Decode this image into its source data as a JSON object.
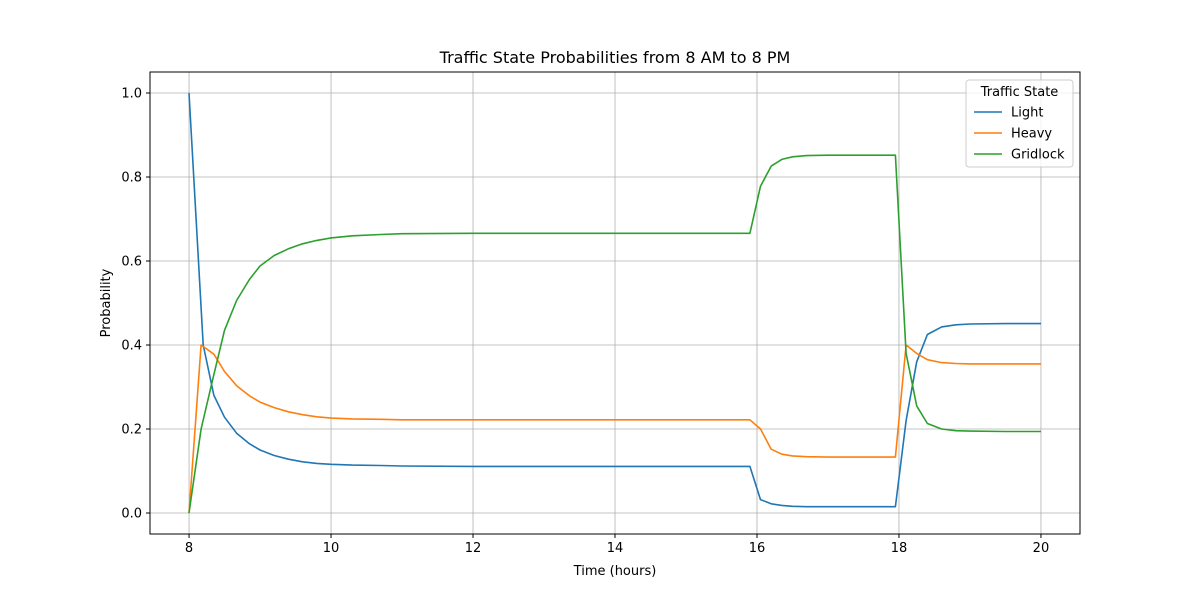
{
  "chart_data": {
    "type": "line",
    "title": "Traffic State Probabilities from 8 AM to 8 PM",
    "xlabel": "Time (hours)",
    "ylabel": "Probability",
    "xlim": [
      7.45,
      20.55
    ],
    "ylim": [
      -0.05,
      1.05
    ],
    "xticks": [
      8,
      10,
      12,
      14,
      16,
      18,
      20
    ],
    "yticks": [
      0.0,
      0.2,
      0.4,
      0.6,
      0.8,
      1.0
    ],
    "xtick_labels": [
      "8",
      "10",
      "12",
      "14",
      "16",
      "18",
      "20"
    ],
    "ytick_labels": [
      "0.0",
      "0.2",
      "0.4",
      "0.6",
      "0.8",
      "1.0"
    ],
    "grid": true,
    "legend": {
      "title": "Traffic State",
      "position": "top-right"
    },
    "series": [
      {
        "name": "Light",
        "color": "#1f77b4",
        "x": [
          8.0,
          8.2,
          8.35,
          8.5,
          8.67,
          8.85,
          9.0,
          9.2,
          9.4,
          9.6,
          9.8,
          10.0,
          10.3,
          10.7,
          11.0,
          12.0,
          14.0,
          15.9,
          16.05,
          16.2,
          16.35,
          16.5,
          16.7,
          17.0,
          17.5,
          17.95,
          18.1,
          18.25,
          18.4,
          18.6,
          18.8,
          19.0,
          19.5,
          20.0
        ],
        "y": [
          1.0,
          0.4,
          0.28,
          0.228,
          0.19,
          0.165,
          0.15,
          0.137,
          0.128,
          0.122,
          0.118,
          0.116,
          0.114,
          0.113,
          0.112,
          0.111,
          0.111,
          0.111,
          0.032,
          0.022,
          0.018,
          0.016,
          0.015,
          0.015,
          0.015,
          0.015,
          0.22,
          0.36,
          0.425,
          0.443,
          0.448,
          0.45,
          0.451,
          0.451
        ]
      },
      {
        "name": "Heavy",
        "color": "#ff7f0e",
        "x": [
          8.0,
          8.17,
          8.35,
          8.5,
          8.67,
          8.85,
          9.0,
          9.2,
          9.4,
          9.6,
          9.8,
          10.0,
          10.3,
          10.7,
          11.0,
          12.0,
          14.0,
          15.9,
          16.05,
          16.2,
          16.35,
          16.5,
          16.7,
          17.0,
          17.5,
          17.95,
          18.1,
          18.25,
          18.4,
          18.6,
          18.8,
          19.0,
          19.5,
          20.0
        ],
        "y": [
          0.0,
          0.4,
          0.378,
          0.337,
          0.303,
          0.279,
          0.264,
          0.251,
          0.241,
          0.234,
          0.229,
          0.226,
          0.224,
          0.223,
          0.222,
          0.222,
          0.222,
          0.222,
          0.2,
          0.152,
          0.14,
          0.136,
          0.134,
          0.133,
          0.133,
          0.133,
          0.4,
          0.38,
          0.365,
          0.358,
          0.356,
          0.355,
          0.355,
          0.355
        ]
      },
      {
        "name": "Gridlock",
        "color": "#2ca02c",
        "x": [
          8.0,
          8.17,
          8.35,
          8.5,
          8.67,
          8.85,
          9.0,
          9.2,
          9.4,
          9.6,
          9.8,
          10.0,
          10.3,
          10.7,
          11.0,
          12.0,
          14.0,
          15.9,
          16.05,
          16.2,
          16.35,
          16.5,
          16.7,
          17.0,
          17.5,
          17.95,
          18.1,
          18.25,
          18.4,
          18.6,
          18.8,
          19.0,
          19.5,
          20.0
        ],
        "y": [
          0.0,
          0.2,
          0.33,
          0.435,
          0.506,
          0.556,
          0.588,
          0.613,
          0.629,
          0.641,
          0.649,
          0.655,
          0.66,
          0.663,
          0.665,
          0.666,
          0.666,
          0.666,
          0.778,
          0.826,
          0.842,
          0.848,
          0.851,
          0.852,
          0.852,
          0.852,
          0.38,
          0.255,
          0.213,
          0.2,
          0.196,
          0.195,
          0.194,
          0.194
        ]
      }
    ]
  }
}
